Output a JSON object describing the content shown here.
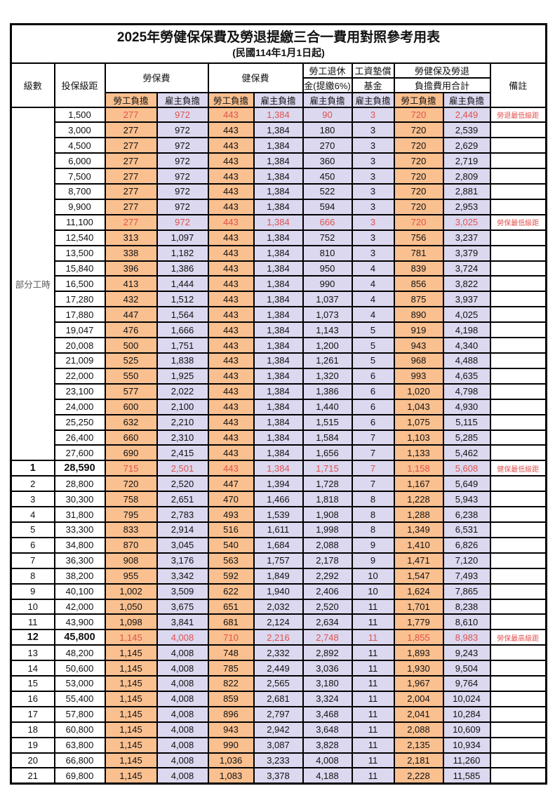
{
  "title": "2025年勞健保保費及勞退提繳三合一費用對照參考用表",
  "subtitle": "(民國114年1月1日起)",
  "header": {
    "level": "級數",
    "bracket": "投保級距",
    "labor_insurance": "勞保費",
    "health_insurance": "健保費",
    "pension_line1": "勞工退休",
    "pension_line2": "金(提繳6%)",
    "wage_fund_line1": "工資墊償",
    "wage_fund_line2": "基金",
    "total_line1": "勞健保及勞退",
    "total_line2": "負擔費用合計",
    "note": "備註",
    "employee_share": "勞工負擔",
    "employer_share": "雇主負擔"
  },
  "part_time_label": "部分工時",
  "colors": {
    "employee_bg": "#FAC090",
    "employer_bg": "#DBD8EF",
    "highlight_red": "#E0524E",
    "part_time_text": "#595959",
    "border": "#000000"
  },
  "rows": [
    {
      "level": "",
      "bracket": "1,500",
      "values": [
        "277",
        "972",
        "443",
        "1,384",
        "90",
        "3",
        "720",
        "2,449"
      ],
      "note": "勞退最低級距",
      "red": true,
      "emphasis": false
    },
    {
      "level": "",
      "bracket": "3,000",
      "values": [
        "277",
        "972",
        "443",
        "1,384",
        "180",
        "3",
        "720",
        "2,539"
      ],
      "note": "",
      "red": false,
      "emphasis": false
    },
    {
      "level": "",
      "bracket": "4,500",
      "values": [
        "277",
        "972",
        "443",
        "1,384",
        "270",
        "3",
        "720",
        "2,629"
      ],
      "note": "",
      "red": false,
      "emphasis": false
    },
    {
      "level": "",
      "bracket": "6,000",
      "values": [
        "277",
        "972",
        "443",
        "1,384",
        "360",
        "3",
        "720",
        "2,719"
      ],
      "note": "",
      "red": false,
      "emphasis": false
    },
    {
      "level": "",
      "bracket": "7,500",
      "values": [
        "277",
        "972",
        "443",
        "1,384",
        "450",
        "3",
        "720",
        "2,809"
      ],
      "note": "",
      "red": false,
      "emphasis": false
    },
    {
      "level": "",
      "bracket": "8,700",
      "values": [
        "277",
        "972",
        "443",
        "1,384",
        "522",
        "3",
        "720",
        "2,881"
      ],
      "note": "",
      "red": false,
      "emphasis": false
    },
    {
      "level": "",
      "bracket": "9,900",
      "values": [
        "277",
        "972",
        "443",
        "1,384",
        "594",
        "3",
        "720",
        "2,953"
      ],
      "note": "",
      "red": false,
      "emphasis": false
    },
    {
      "level": "",
      "bracket": "11,100",
      "values": [
        "277",
        "972",
        "443",
        "1,384",
        "666",
        "3",
        "720",
        "3,025"
      ],
      "note": "勞保最低級距",
      "red": true,
      "emphasis": false
    },
    {
      "level": "",
      "bracket": "12,540",
      "values": [
        "313",
        "1,097",
        "443",
        "1,384",
        "752",
        "3",
        "756",
        "3,237"
      ],
      "note": "",
      "red": false,
      "emphasis": false
    },
    {
      "level": "",
      "bracket": "13,500",
      "values": [
        "338",
        "1,182",
        "443",
        "1,384",
        "810",
        "3",
        "781",
        "3,379"
      ],
      "note": "",
      "red": false,
      "emphasis": false
    },
    {
      "level": "",
      "bracket": "15,840",
      "values": [
        "396",
        "1,386",
        "443",
        "1,384",
        "950",
        "4",
        "839",
        "3,724"
      ],
      "note": "",
      "red": false,
      "emphasis": false
    },
    {
      "level": "",
      "bracket": "16,500",
      "values": [
        "413",
        "1,444",
        "443",
        "1,384",
        "990",
        "4",
        "856",
        "3,822"
      ],
      "note": "",
      "red": false,
      "emphasis": false
    },
    {
      "level": "",
      "bracket": "17,280",
      "values": [
        "432",
        "1,512",
        "443",
        "1,384",
        "1,037",
        "4",
        "875",
        "3,937"
      ],
      "note": "",
      "red": false,
      "emphasis": false
    },
    {
      "level": "",
      "bracket": "17,880",
      "values": [
        "447",
        "1,564",
        "443",
        "1,384",
        "1,073",
        "4",
        "890",
        "4,025"
      ],
      "note": "",
      "red": false,
      "emphasis": false
    },
    {
      "level": "",
      "bracket": "19,047",
      "values": [
        "476",
        "1,666",
        "443",
        "1,384",
        "1,143",
        "5",
        "919",
        "4,198"
      ],
      "note": "",
      "red": false,
      "emphasis": false
    },
    {
      "level": "",
      "bracket": "20,008",
      "values": [
        "500",
        "1,751",
        "443",
        "1,384",
        "1,200",
        "5",
        "943",
        "4,340"
      ],
      "note": "",
      "red": false,
      "emphasis": false
    },
    {
      "level": "",
      "bracket": "21,009",
      "values": [
        "525",
        "1,838",
        "443",
        "1,384",
        "1,261",
        "5",
        "968",
        "4,488"
      ],
      "note": "",
      "red": false,
      "emphasis": false
    },
    {
      "level": "",
      "bracket": "22,000",
      "values": [
        "550",
        "1,925",
        "443",
        "1,384",
        "1,320",
        "6",
        "993",
        "4,635"
      ],
      "note": "",
      "red": false,
      "emphasis": false
    },
    {
      "level": "",
      "bracket": "23,100",
      "values": [
        "577",
        "2,022",
        "443",
        "1,384",
        "1,386",
        "6",
        "1,020",
        "4,798"
      ],
      "note": "",
      "red": false,
      "emphasis": false
    },
    {
      "level": "",
      "bracket": "24,000",
      "values": [
        "600",
        "2,100",
        "443",
        "1,384",
        "1,440",
        "6",
        "1,043",
        "4,930"
      ],
      "note": "",
      "red": false,
      "emphasis": false
    },
    {
      "level": "",
      "bracket": "25,250",
      "values": [
        "632",
        "2,210",
        "443",
        "1,384",
        "1,515",
        "6",
        "1,075",
        "5,115"
      ],
      "note": "",
      "red": false,
      "emphasis": false
    },
    {
      "level": "",
      "bracket": "26,400",
      "values": [
        "660",
        "2,310",
        "443",
        "1,384",
        "1,584",
        "7",
        "1,103",
        "5,285"
      ],
      "note": "",
      "red": false,
      "emphasis": false
    },
    {
      "level": "",
      "bracket": "27,600",
      "values": [
        "690",
        "2,415",
        "443",
        "1,384",
        "1,656",
        "7",
        "1,133",
        "5,462"
      ],
      "note": "",
      "red": false,
      "emphasis": false
    },
    {
      "level": "1",
      "bracket": "28,590",
      "values": [
        "715",
        "2,501",
        "443",
        "1,384",
        "1,715",
        "7",
        "1,158",
        "5,608"
      ],
      "note": "健保最低級距",
      "red": true,
      "emphasis": true
    },
    {
      "level": "2",
      "bracket": "28,800",
      "values": [
        "720",
        "2,520",
        "447",
        "1,394",
        "1,728",
        "7",
        "1,167",
        "5,649"
      ],
      "note": "",
      "red": false,
      "emphasis": false
    },
    {
      "level": "3",
      "bracket": "30,300",
      "values": [
        "758",
        "2,651",
        "470",
        "1,466",
        "1,818",
        "8",
        "1,228",
        "5,943"
      ],
      "note": "",
      "red": false,
      "emphasis": false
    },
    {
      "level": "4",
      "bracket": "31,800",
      "values": [
        "795",
        "2,783",
        "493",
        "1,539",
        "1,908",
        "8",
        "1,288",
        "6,238"
      ],
      "note": "",
      "red": false,
      "emphasis": false
    },
    {
      "level": "5",
      "bracket": "33,300",
      "values": [
        "833",
        "2,914",
        "516",
        "1,611",
        "1,998",
        "8",
        "1,349",
        "6,531"
      ],
      "note": "",
      "red": false,
      "emphasis": false
    },
    {
      "level": "6",
      "bracket": "34,800",
      "values": [
        "870",
        "3,045",
        "540",
        "1,684",
        "2,088",
        "9",
        "1,410",
        "6,826"
      ],
      "note": "",
      "red": false,
      "emphasis": false
    },
    {
      "level": "7",
      "bracket": "36,300",
      "values": [
        "908",
        "3,176",
        "563",
        "1,757",
        "2,178",
        "9",
        "1,471",
        "7,120"
      ],
      "note": "",
      "red": false,
      "emphasis": false
    },
    {
      "level": "8",
      "bracket": "38,200",
      "values": [
        "955",
        "3,342",
        "592",
        "1,849",
        "2,292",
        "10",
        "1,547",
        "7,493"
      ],
      "note": "",
      "red": false,
      "emphasis": false
    },
    {
      "level": "9",
      "bracket": "40,100",
      "values": [
        "1,002",
        "3,509",
        "622",
        "1,940",
        "2,406",
        "10",
        "1,624",
        "7,865"
      ],
      "note": "",
      "red": false,
      "emphasis": false
    },
    {
      "level": "10",
      "bracket": "42,000",
      "values": [
        "1,050",
        "3,675",
        "651",
        "2,032",
        "2,520",
        "11",
        "1,701",
        "8,238"
      ],
      "note": "",
      "red": false,
      "emphasis": false
    },
    {
      "level": "11",
      "bracket": "43,900",
      "values": [
        "1,098",
        "3,841",
        "681",
        "2,124",
        "2,634",
        "11",
        "1,779",
        "8,610"
      ],
      "note": "",
      "red": false,
      "emphasis": false
    },
    {
      "level": "12",
      "bracket": "45,800",
      "values": [
        "1,145",
        "4,008",
        "710",
        "2,216",
        "2,748",
        "11",
        "1,855",
        "8,983"
      ],
      "note": "勞保最高級距",
      "red": true,
      "emphasis": true
    },
    {
      "level": "13",
      "bracket": "48,200",
      "values": [
        "1,145",
        "4,008",
        "748",
        "2,332",
        "2,892",
        "11",
        "1,893",
        "9,243"
      ],
      "note": "",
      "red": false,
      "emphasis": false
    },
    {
      "level": "14",
      "bracket": "50,600",
      "values": [
        "1,145",
        "4,008",
        "785",
        "2,449",
        "3,036",
        "11",
        "1,930",
        "9,504"
      ],
      "note": "",
      "red": false,
      "emphasis": false
    },
    {
      "level": "15",
      "bracket": "53,000",
      "values": [
        "1,145",
        "4,008",
        "822",
        "2,565",
        "3,180",
        "11",
        "1,967",
        "9,764"
      ],
      "note": "",
      "red": false,
      "emphasis": false
    },
    {
      "level": "16",
      "bracket": "55,400",
      "values": [
        "1,145",
        "4,008",
        "859",
        "2,681",
        "3,324",
        "11",
        "2,004",
        "10,024"
      ],
      "note": "",
      "red": false,
      "emphasis": false
    },
    {
      "level": "17",
      "bracket": "57,800",
      "values": [
        "1,145",
        "4,008",
        "896",
        "2,797",
        "3,468",
        "11",
        "2,041",
        "10,284"
      ],
      "note": "",
      "red": false,
      "emphasis": false
    },
    {
      "level": "18",
      "bracket": "60,800",
      "values": [
        "1,145",
        "4,008",
        "943",
        "2,942",
        "3,648",
        "11",
        "2,088",
        "10,609"
      ],
      "note": "",
      "red": false,
      "emphasis": false
    },
    {
      "level": "19",
      "bracket": "63,800",
      "values": [
        "1,145",
        "4,008",
        "990",
        "3,087",
        "3,828",
        "11",
        "2,135",
        "10,934"
      ],
      "note": "",
      "red": false,
      "emphasis": false
    },
    {
      "level": "20",
      "bracket": "66,800",
      "values": [
        "1,145",
        "4,008",
        "1,036",
        "3,233",
        "4,008",
        "11",
        "2,181",
        "11,260"
      ],
      "note": "",
      "red": false,
      "emphasis": false
    },
    {
      "level": "21",
      "bracket": "69,800",
      "values": [
        "1,145",
        "4,008",
        "1,083",
        "3,378",
        "4,188",
        "11",
        "2,228",
        "11,585"
      ],
      "note": "",
      "red": false,
      "emphasis": false
    }
  ]
}
